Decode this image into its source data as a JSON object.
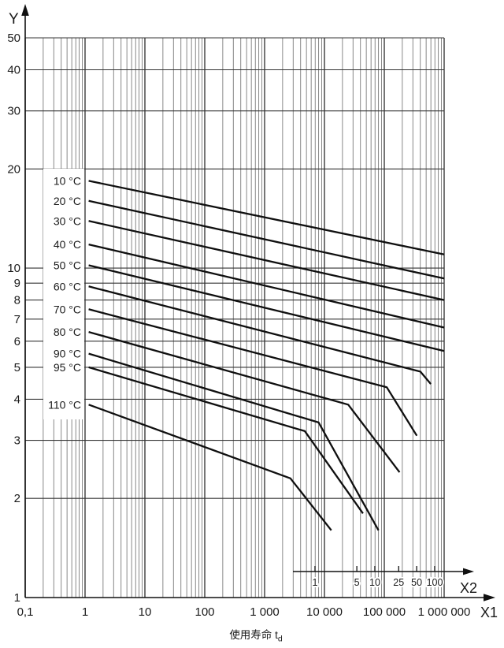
{
  "chart_data": {
    "type": "line",
    "title": "",
    "caption": "使用寿命 t",
    "caption_sub": "d",
    "x_axis": {
      "label": "X1",
      "scale": "log",
      "min": 0.1,
      "max": 1000000,
      "tick_values": [
        0.1,
        1,
        10,
        100,
        1000,
        10000,
        100000,
        1000000
      ],
      "tick_labels": [
        "0,1",
        "1",
        "10",
        "100",
        "1 000",
        "10 000",
        "100 000",
        "1 000 000"
      ]
    },
    "y_axis": {
      "label": "Y",
      "scale": "log",
      "min": 1,
      "max": 50,
      "tick_values": [
        1,
        2,
        3,
        4,
        5,
        6,
        7,
        8,
        9,
        10,
        20,
        30,
        40,
        50
      ],
      "tick_labels": [
        "1",
        "2",
        "3",
        "4",
        "5",
        "6",
        "7",
        "8",
        "9",
        "10",
        "20",
        "30",
        "40",
        "50"
      ]
    },
    "x2_axis": {
      "label": "X2",
      "scale": "log",
      "tick_values": [
        1,
        5,
        10,
        25,
        50,
        100
      ],
      "tick_labels": [
        "1",
        "5",
        "10",
        "25",
        "50",
        "100"
      ]
    },
    "grid": "log-log full grid",
    "legend_position": "left-inline-labels",
    "series": [
      {
        "name": "10 °C",
        "points": [
          [
            1.15,
            18.4
          ],
          [
            1000000,
            11.0
          ]
        ]
      },
      {
        "name": "20 °C",
        "points": [
          [
            1.15,
            16.0
          ],
          [
            1000000,
            9.3
          ]
        ]
      },
      {
        "name": "30 °C",
        "points": [
          [
            1.15,
            13.9
          ],
          [
            1000000,
            8.0
          ]
        ]
      },
      {
        "name": "40 °C",
        "points": [
          [
            1.15,
            11.8
          ],
          [
            1000000,
            6.6
          ]
        ]
      },
      {
        "name": "50 °C",
        "points": [
          [
            1.15,
            10.2
          ],
          [
            1000000,
            5.6
          ]
        ]
      },
      {
        "name": "60 °C",
        "points": [
          [
            1.15,
            8.8
          ],
          [
            400000,
            4.85
          ],
          [
            600000,
            4.45
          ]
        ]
      },
      {
        "name": "70 °C",
        "points": [
          [
            1.15,
            7.5
          ],
          [
            110000,
            4.35
          ],
          [
            350000,
            3.1
          ]
        ]
      },
      {
        "name": "80 °C",
        "points": [
          [
            1.15,
            6.4
          ],
          [
            25000,
            3.85
          ],
          [
            180000,
            2.4
          ]
        ]
      },
      {
        "name": "90 °C",
        "points": [
          [
            1.15,
            5.5
          ],
          [
            8000,
            3.4
          ],
          [
            80000,
            1.6
          ]
        ]
      },
      {
        "name": "95 °C",
        "points": [
          [
            1.15,
            5.0
          ],
          [
            4700,
            3.2
          ],
          [
            44000,
            1.8
          ]
        ]
      },
      {
        "name": "110 °C",
        "points": [
          [
            1.15,
            3.85
          ],
          [
            2700,
            2.3
          ],
          [
            13000,
            1.6
          ]
        ]
      }
    ]
  },
  "colors": {
    "background": "#ffffff",
    "grid_minor": "#6a6a6a",
    "grid_major": "#2b2b2b",
    "grid_horizontal": "#353535",
    "axis": "#111111",
    "curve": "#0f0f0f",
    "text": "#1a1a1a"
  }
}
